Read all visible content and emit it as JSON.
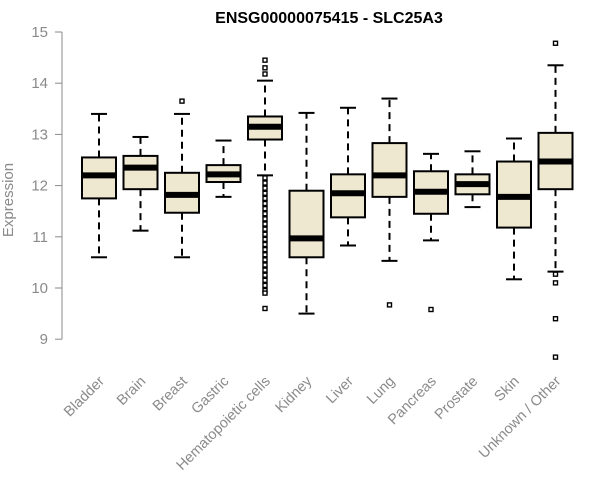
{
  "chart_data": {
    "type": "boxplot",
    "title": "ENSG00000075415 - SLC25A3",
    "xlabel": "",
    "ylabel": "Expression",
    "ylim": [
      8.6,
      15.1
    ],
    "yticks": [
      9,
      10,
      11,
      12,
      13,
      14,
      15
    ],
    "grid": false,
    "colors": {
      "box_fill": "#efe8d1",
      "stroke": "#000000",
      "axis": "#8a8a8a"
    },
    "categories": [
      "Bladder",
      "Brain",
      "Breast",
      "Gastric",
      "Hematopoietic cells",
      "Kidney",
      "Liver",
      "Lung",
      "Pancreas",
      "Prostate",
      "Skin",
      "Unknown / Other"
    ],
    "boxes": [
      {
        "name": "Bladder",
        "whisker_low": 10.6,
        "q1": 11.75,
        "median": 12.2,
        "q3": 12.55,
        "whisker_high": 13.4,
        "outliers": []
      },
      {
        "name": "Brain",
        "whisker_low": 11.12,
        "q1": 11.93,
        "median": 12.35,
        "q3": 12.58,
        "whisker_high": 12.95,
        "outliers": []
      },
      {
        "name": "Breast",
        "whisker_low": 10.6,
        "q1": 11.47,
        "median": 11.82,
        "q3": 12.25,
        "whisker_high": 13.4,
        "outliers": [
          13.65
        ]
      },
      {
        "name": "Gastric",
        "whisker_low": 11.78,
        "q1": 12.07,
        "median": 12.22,
        "q3": 12.4,
        "whisker_high": 12.88,
        "outliers": []
      },
      {
        "name": "Hematopoietic cells",
        "whisker_low": 12.2,
        "q1": 12.9,
        "median": 13.15,
        "q3": 13.35,
        "whisker_high": 14.05,
        "outliers": [
          14.45,
          14.3,
          14.18,
          12.15,
          12.05,
          11.95,
          11.85,
          11.75,
          11.65,
          11.55,
          11.45,
          11.35,
          11.25,
          11.15,
          11.05,
          10.95,
          10.85,
          10.75,
          10.65,
          10.55,
          10.45,
          10.35,
          10.25,
          10.15,
          10.05,
          9.95,
          9.9,
          9.6
        ]
      },
      {
        "name": "Kidney",
        "whisker_low": 9.5,
        "q1": 10.6,
        "median": 10.97,
        "q3": 11.9,
        "whisker_high": 13.42,
        "outliers": []
      },
      {
        "name": "Liver",
        "whisker_low": 10.83,
        "q1": 11.38,
        "median": 11.85,
        "q3": 12.22,
        "whisker_high": 13.52,
        "outliers": []
      },
      {
        "name": "Lung",
        "whisker_low": 10.53,
        "q1": 11.78,
        "median": 12.2,
        "q3": 12.83,
        "whisker_high": 13.7,
        "outliers": [
          9.67
        ]
      },
      {
        "name": "Pancreas",
        "whisker_low": 10.93,
        "q1": 11.45,
        "median": 11.88,
        "q3": 12.28,
        "whisker_high": 12.62,
        "outliers": [
          9.58
        ]
      },
      {
        "name": "Prostate",
        "whisker_low": 11.58,
        "q1": 11.83,
        "median": 12.03,
        "q3": 12.22,
        "whisker_high": 12.67,
        "outliers": []
      },
      {
        "name": "Skin",
        "whisker_low": 10.17,
        "q1": 11.18,
        "median": 11.78,
        "q3": 12.47,
        "whisker_high": 12.92,
        "outliers": []
      },
      {
        "name": "Unknown / Other",
        "whisker_low": 10.32,
        "q1": 11.93,
        "median": 12.47,
        "q3": 13.03,
        "whisker_high": 14.35,
        "outliers": [
          14.78,
          10.27,
          10.1,
          9.4,
          8.65
        ]
      }
    ]
  }
}
